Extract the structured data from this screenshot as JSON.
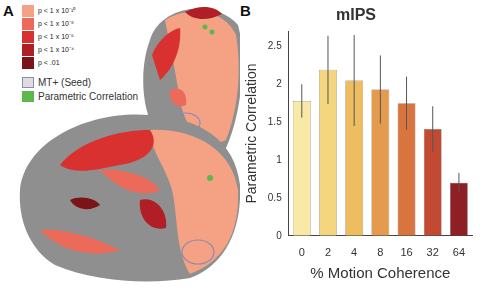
{
  "panel_a": {
    "label": "A",
    "legend": [
      {
        "text": "p < 1 x 10⁻¹⁰",
        "color": "#f4a184"
      },
      {
        "text": "p < 1 x 10⁻⁸",
        "color": "#ec6a5a"
      },
      {
        "text": "p < 1 x 10⁻⁶",
        "color": "#d8312f"
      },
      {
        "text": "p < 1 x 10⁻⁴",
        "color": "#b01f25"
      },
      {
        "text": "p < .01",
        "color": "#7a1418"
      }
    ],
    "seed_label": "MT+ (Seed)",
    "correlation_label": "Parametric Correlation"
  },
  "panel_b_label": "B",
  "chart_data": {
    "type": "bar",
    "title": "mIPS",
    "x_label": "% Motion Coherence",
    "y_label": "Parametric Correlation",
    "categories": [
      "0",
      "2",
      "4",
      "8",
      "16",
      "32",
      "64"
    ],
    "values": [
      1.78,
      2.19,
      2.05,
      1.93,
      1.75,
      1.41,
      0.7
    ],
    "errors": [
      0.22,
      0.45,
      0.6,
      0.45,
      0.35,
      0.3,
      0.13
    ],
    "colors": [
      "#f8e9a6",
      "#f3d67e",
      "#edbd60",
      "#e59b4d",
      "#d8753f",
      "#c24a33",
      "#8e1f22"
    ],
    "ylim": [
      0,
      2.7
    ],
    "yticks": [
      0,
      0.5,
      1,
      1.5,
      2,
      2.5
    ],
    "grid": false
  }
}
